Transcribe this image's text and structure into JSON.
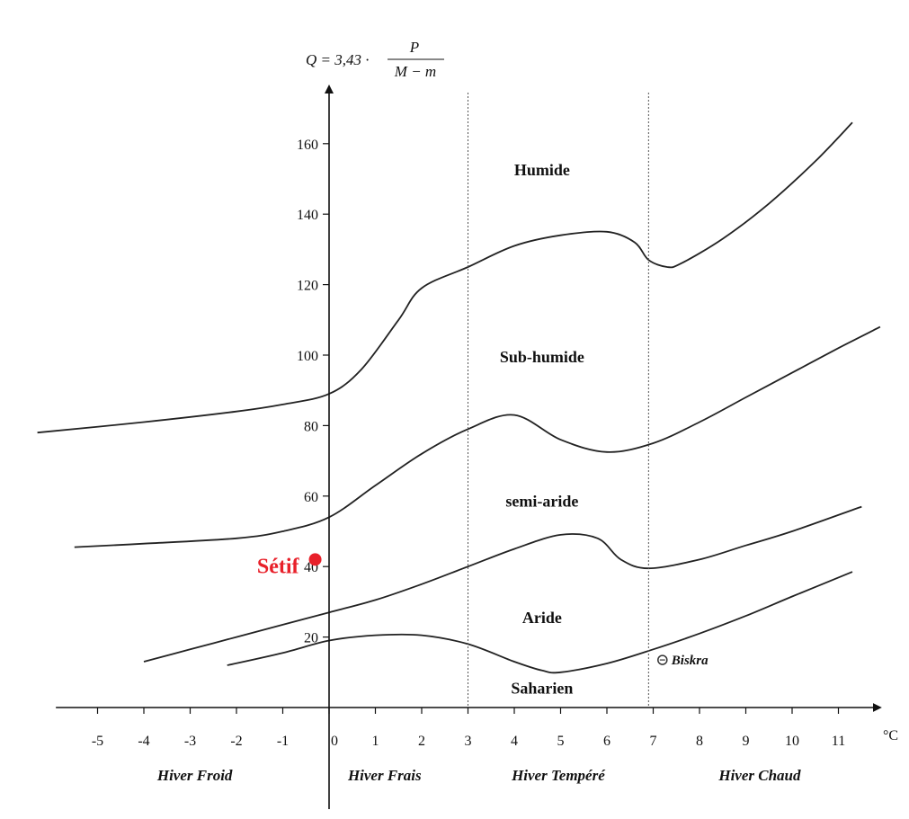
{
  "chart_data": {
    "type": "line",
    "title": "",
    "ylabel_formula": {
      "lhs": "Q = 3,43 ·",
      "numerator": "P",
      "denominator": "M − m"
    },
    "xlabel": "°C",
    "xlim": [
      -5.9,
      11.9
    ],
    "ylim": [
      -6,
      174
    ],
    "x_ticks": [
      -5,
      -4,
      -3,
      -2,
      -1,
      0,
      1,
      2,
      3,
      4,
      5,
      6,
      7,
      8,
      9,
      10,
      11
    ],
    "y_ticks": [
      20,
      40,
      60,
      80,
      100,
      120,
      140,
      160
    ],
    "vertical_lines": [
      3,
      6.9
    ],
    "series": [
      {
        "x": [
          -6.3,
          -4,
          -2,
          -1,
          0,
          0.7,
          1.5,
          2,
          3,
          4,
          5,
          6,
          6.6,
          6.9,
          7.3,
          7.6,
          8.5,
          9.5,
          10.5,
          11.3
        ],
        "y": [
          78,
          81,
          84,
          86,
          89,
          96,
          110,
          119,
          125,
          131,
          134,
          135,
          132,
          127,
          125,
          126,
          133,
          143,
          155,
          166
        ]
      },
      {
        "x": [
          -5.5,
          -4,
          -2,
          -1,
          0,
          1,
          2,
          3,
          4,
          5,
          6,
          7,
          8,
          9,
          10,
          11,
          11.9
        ],
        "y": [
          45.5,
          46.5,
          48,
          50,
          54,
          63,
          72,
          79,
          83,
          76,
          72.5,
          75,
          81,
          88,
          95,
          102,
          108
        ]
      },
      {
        "x": [
          -4,
          -3,
          -2,
          -1,
          0,
          1,
          2,
          3,
          4,
          5,
          5.8,
          6.3,
          6.9,
          8,
          9,
          10,
          11.5
        ],
        "y": [
          13,
          16.5,
          20,
          23.5,
          27,
          30.5,
          35,
          40,
          45,
          49,
          48,
          42,
          39.5,
          42,
          46,
          50,
          57
        ]
      },
      {
        "x": [
          -2.2,
          -1,
          0,
          1,
          2,
          3,
          4,
          4.6,
          5,
          6,
          7,
          8,
          9,
          10,
          11.3
        ],
        "y": [
          12,
          15.5,
          19,
          20.5,
          20.5,
          18,
          13,
          10.5,
          10,
          12.5,
          16.5,
          21,
          26,
          31.5,
          38.5
        ]
      }
    ],
    "zones": [
      {
        "label": "Humide",
        "x": 4.6,
        "y": 151
      },
      {
        "label": "Sub-humide",
        "x": 4.6,
        "y": 98
      },
      {
        "label": "semi-aride",
        "x": 4.6,
        "y": 57
      },
      {
        "label": "Aride",
        "x": 4.6,
        "y": 24
      },
      {
        "label": "Saharien",
        "x": 4.6,
        "y": 4
      }
    ],
    "seasons": [
      {
        "label": "Hiver Froid",
        "x": -2.9
      },
      {
        "label": "Hiver Frais",
        "x": 1.2
      },
      {
        "label": "Hiver Tempéré",
        "x": 4.95
      },
      {
        "label": "Hiver Chaud",
        "x": 9.3
      }
    ],
    "stations": [
      {
        "label": "Sétif",
        "x": -0.3,
        "y": 42,
        "color": "#e8202a"
      },
      {
        "label": "Biskra",
        "x": 7.2,
        "y": 13.5,
        "color": "#333333"
      }
    ]
  }
}
